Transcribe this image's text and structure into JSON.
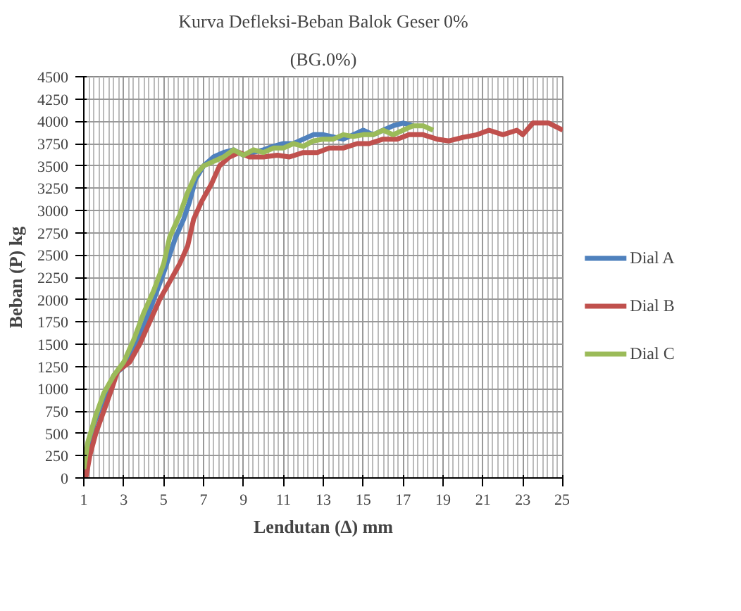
{
  "chart_data": {
    "type": "line",
    "title": "Kurva Defleksi-Beban Balok Geser 0%",
    "subtitle": "(BG.0%)",
    "xlabel": "Lendutan (∆) mm",
    "ylabel": "Beban (P) kg",
    "xlim": [
      1,
      25
    ],
    "xticks": [
      1,
      3,
      5,
      7,
      9,
      11,
      13,
      15,
      17,
      19,
      21,
      23,
      25
    ],
    "ylim": [
      0,
      4500
    ],
    "yticks": [
      0,
      250,
      500,
      750,
      1000,
      1250,
      1500,
      1750,
      2000,
      2250,
      2500,
      2750,
      3000,
      3250,
      3500,
      3750,
      4000,
      4250,
      4500
    ],
    "grid": true,
    "legend": "right",
    "marker": "none",
    "line_style": "solid",
    "series": [
      {
        "name": "Dial A",
        "color": "#4f81bd",
        "x": [
          1,
          1.2,
          1.5,
          2,
          2.5,
          3,
          3.5,
          4,
          4.5,
          5,
          5.3,
          5.6,
          6,
          6.3,
          6.6,
          7,
          7.5,
          8,
          8.5,
          9,
          9.5,
          10,
          10.5,
          11,
          11.5,
          12,
          12.5,
          13,
          14,
          14.5,
          15,
          15.5,
          16,
          16.5,
          17,
          17.5
        ],
        "values": [
          0,
          300,
          600,
          900,
          1150,
          1250,
          1450,
          1700,
          2000,
          2300,
          2500,
          2700,
          2900,
          3100,
          3350,
          3500,
          3600,
          3650,
          3680,
          3620,
          3650,
          3680,
          3720,
          3750,
          3750,
          3800,
          3850,
          3850,
          3800,
          3850,
          3900,
          3850,
          3900,
          3950,
          3980,
          3950
        ]
      },
      {
        "name": "Dial B",
        "color": "#c0504d",
        "x": [
          1.1,
          1.3,
          1.6,
          2,
          2.4,
          2.7,
          3.3,
          3.8,
          4.3,
          4.8,
          5.3,
          5.8,
          6.2,
          6.5,
          6.9,
          7.4,
          7.8,
          8.3,
          8.8,
          9.3,
          10,
          10.7,
          11.3,
          12,
          12.7,
          13.3,
          14,
          14.7,
          15.3,
          16,
          16.7,
          17.3,
          18,
          18.7,
          19.3,
          20,
          20.7,
          21.3,
          22,
          22.7,
          23,
          23.5,
          24.3,
          25
        ],
        "values": [
          0,
          250,
          500,
          750,
          1000,
          1200,
          1300,
          1500,
          1750,
          2000,
          2200,
          2400,
          2600,
          2900,
          3100,
          3300,
          3500,
          3600,
          3650,
          3600,
          3600,
          3620,
          3600,
          3650,
          3650,
          3700,
          3700,
          3750,
          3750,
          3800,
          3800,
          3850,
          3850,
          3800,
          3780,
          3820,
          3850,
          3900,
          3850,
          3900,
          3850,
          3980,
          3980,
          3900
        ]
      },
      {
        "name": "Dial C",
        "color": "#9bbb59",
        "x": [
          1,
          1.2,
          1.6,
          2,
          2.5,
          3,
          3.5,
          4,
          4.5,
          5,
          5.3,
          5.8,
          6.2,
          6.6,
          7,
          7.5,
          8,
          8.5,
          9,
          9.5,
          10,
          10.5,
          11,
          11.5,
          12,
          12.5,
          13,
          13.5,
          14,
          14.5,
          15,
          15.5,
          16,
          16.5,
          17,
          17.5,
          18,
          18.5
        ],
        "values": [
          100,
          400,
          700,
          950,
          1150,
          1300,
          1550,
          1850,
          2100,
          2400,
          2700,
          2950,
          3200,
          3400,
          3500,
          3550,
          3600,
          3680,
          3620,
          3680,
          3650,
          3700,
          3700,
          3750,
          3720,
          3780,
          3800,
          3800,
          3850,
          3830,
          3850,
          3850,
          3900,
          3850,
          3900,
          3950,
          3950,
          3900
        ]
      }
    ]
  }
}
